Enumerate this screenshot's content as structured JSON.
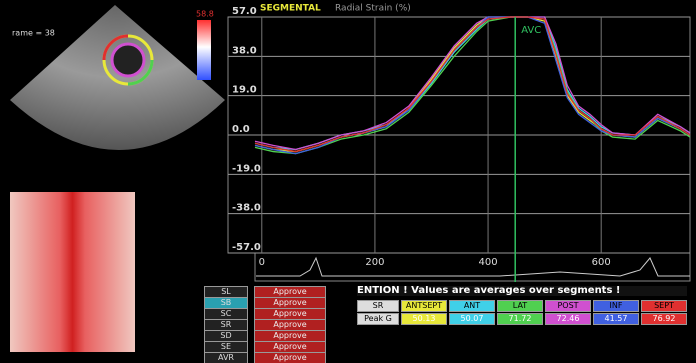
{
  "chart_data": {
    "type": "line",
    "title": "SEGMENTAL",
    "subtitle": "Radial Strain (%)",
    "annotations": [
      {
        "text": "AVC",
        "x": 448
      }
    ],
    "x": [
      -12,
      20,
      60,
      100,
      140,
      180,
      220,
      260,
      300,
      340,
      380,
      400,
      440,
      470,
      500,
      520,
      540,
      560,
      580,
      600,
      620,
      660,
      700,
      740,
      757
    ],
    "series": [
      {
        "name": "ANTSEPT",
        "color": "#e8e83a",
        "values": [
          -5,
          -7,
          -8,
          -5,
          -1,
          1,
          4,
          13,
          27,
          42,
          53,
          57,
          57,
          57,
          55,
          38,
          19,
          11,
          7,
          3,
          0,
          -1,
          8,
          3,
          0
        ]
      },
      {
        "name": "ANT",
        "color": "#40d0e8",
        "values": [
          -4,
          -6,
          -7,
          -4,
          0,
          2,
          5,
          12,
          25,
          40,
          51,
          56,
          57,
          57,
          57,
          42,
          22,
          13,
          9,
          4,
          1,
          0,
          9,
          4,
          1
        ]
      },
      {
        "name": "LAT",
        "color": "#50d050",
        "values": [
          -6,
          -8,
          -9,
          -6,
          -2,
          0,
          3,
          11,
          24,
          38,
          50,
          55,
          57,
          57,
          56,
          40,
          21,
          12,
          8,
          2,
          -1,
          -2,
          7,
          2,
          -1
        ]
      },
      {
        "name": "POST",
        "color": "#d050d0",
        "values": [
          -3,
          -5,
          -7,
          -4,
          0,
          2,
          6,
          14,
          28,
          43,
          54,
          57,
          57,
          57,
          57,
          44,
          24,
          14,
          10,
          5,
          1,
          0,
          10,
          4,
          1
        ]
      },
      {
        "name": "INF",
        "color": "#4060e0",
        "values": [
          -5,
          -7,
          -9,
          -6,
          -1,
          1,
          4,
          12,
          26,
          41,
          52,
          57,
          57,
          57,
          54,
          36,
          18,
          10,
          6,
          2,
          0,
          -1,
          8,
          3,
          0
        ]
      },
      {
        "name": "SEPT",
        "color": "#e03030",
        "values": [
          -4,
          -6,
          -8,
          -5,
          -1,
          1,
          5,
          13,
          26,
          41,
          52,
          56,
          57,
          57,
          56,
          39,
          20,
          12,
          8,
          3,
          0,
          0,
          9,
          3,
          0
        ]
      }
    ],
    "xlim": [
      -12,
      757
    ],
    "xticks": [
      0,
      200,
      400,
      600
    ],
    "ylim": [
      -57,
      57
    ],
    "yticks": [
      {
        "value": 57,
        "label": "57.0"
      },
      {
        "value": 38,
        "label": "38.0"
      },
      {
        "value": 19,
        "label": "19.0"
      },
      {
        "value": 0,
        "label": "0.0"
      },
      {
        "value": -19,
        "label": "-19.0"
      },
      {
        "value": -38,
        "label": "-38.0"
      },
      {
        "value": -57,
        "label": "-57.0"
      }
    ],
    "grid": true
  },
  "image_panel": {
    "frame_label": "rame = 38",
    "scale_max": "58.8"
  },
  "approve_list": {
    "labels": [
      "SL",
      "SB",
      "SC",
      "SR",
      "SD",
      "SE",
      "AVR"
    ],
    "button": "Approve"
  },
  "segment_table": {
    "header": "ENTION ! Values are averages over segments !",
    "row_labels": [
      "SR",
      "Peak G"
    ],
    "segments": [
      "ANTSEPT",
      "ANT",
      "LAT",
      "POST",
      "INF",
      "SEPT"
    ],
    "peaks": [
      "50.13",
      "50.07",
      "71.72",
      "72.46",
      "41.57",
      "76.92"
    ]
  }
}
